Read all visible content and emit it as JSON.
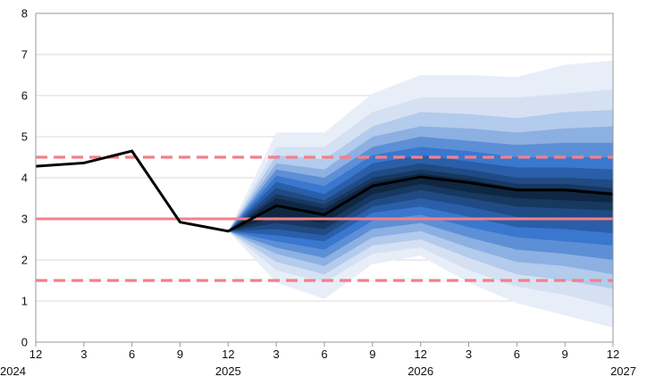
{
  "chart_data": {
    "type": "area",
    "title": "",
    "xlabel": "",
    "ylabel": "",
    "ylim": [
      0,
      8
    ],
    "y_ticks": [
      0,
      1,
      2,
      3,
      4,
      5,
      6,
      7,
      8
    ],
    "grid": true,
    "x_tick_labels": [
      {
        "month": "12",
        "year": "2024"
      },
      {
        "month": "3",
        "year": ""
      },
      {
        "month": "6",
        "year": ""
      },
      {
        "month": "9",
        "year": ""
      },
      {
        "month": "12",
        "year": "2025"
      },
      {
        "month": "3",
        "year": ""
      },
      {
        "month": "6",
        "year": ""
      },
      {
        "month": "9",
        "year": ""
      },
      {
        "month": "12",
        "year": "2026"
      },
      {
        "month": "3",
        "year": ""
      },
      {
        "month": "6",
        "year": ""
      },
      {
        "month": "9",
        "year": ""
      },
      {
        "month": "12",
        "year": "2027"
      }
    ],
    "x_dates": [
      "2024-12",
      "2025-03",
      "2025-06",
      "2025-09",
      "2025-12",
      "2026-03",
      "2026-06",
      "2026-09",
      "2026-12",
      "2027-03",
      "2027-06",
      "2027-09",
      "2027-12"
    ],
    "series": [
      {
        "role": "central",
        "color": "#000000",
        "values": [
          4.28,
          4.36,
          4.65,
          2.92,
          2.7,
          3.32,
          3.1,
          3.8,
          4.02,
          3.88,
          3.7,
          3.7,
          3.6
        ]
      }
    ],
    "fan_chart": {
      "start_date": "2025-12",
      "dates": [
        "2025-12",
        "2026-03",
        "2026-06",
        "2026-09",
        "2026-12",
        "2027-03",
        "2027-06",
        "2027-09",
        "2027-12"
      ],
      "colors": [
        "#e8eef8",
        "#d5e1f3",
        "#b3cbec",
        "#8db0e2",
        "#5d8fd6",
        "#3a77ce",
        "#2a5ea8",
        "#1f4a84",
        "#17385f",
        "#0f2743"
      ],
      "bands": [
        {
          "lower": [
            2.7,
            1.45,
            1.05,
            1.9,
            2.1,
            1.45,
            0.95,
            0.65,
            0.35
          ],
          "upper": [
            2.7,
            5.1,
            5.1,
            6.05,
            6.5,
            6.5,
            6.45,
            6.75,
            6.85
          ]
        },
        {
          "lower": [
            2.7,
            1.75,
            1.45,
            2.15,
            2.3,
            1.75,
            1.35,
            1.15,
            0.85
          ],
          "upper": [
            2.7,
            4.75,
            4.75,
            5.6,
            5.95,
            5.95,
            5.95,
            6.05,
            6.15
          ]
        },
        {
          "lower": [
            2.7,
            1.95,
            1.65,
            2.35,
            2.5,
            2.05,
            1.65,
            1.5,
            1.3
          ],
          "upper": [
            2.7,
            4.55,
            4.45,
            5.25,
            5.6,
            5.55,
            5.45,
            5.6,
            5.65
          ]
        },
        {
          "lower": [
            2.7,
            2.15,
            1.85,
            2.55,
            2.7,
            2.3,
            1.95,
            1.85,
            1.65
          ],
          "upper": [
            2.7,
            4.35,
            4.2,
            5.0,
            5.25,
            5.2,
            5.1,
            5.2,
            5.25
          ]
        },
        {
          "lower": [
            2.7,
            2.3,
            2.05,
            2.75,
            2.9,
            2.55,
            2.25,
            2.15,
            2.0
          ],
          "upper": [
            2.7,
            4.2,
            4.0,
            4.75,
            5.0,
            4.9,
            4.8,
            4.85,
            4.85
          ]
        },
        {
          "lower": [
            2.7,
            2.45,
            2.25,
            2.95,
            3.1,
            2.8,
            2.55,
            2.45,
            2.35
          ],
          "upper": [
            2.7,
            4.05,
            3.8,
            4.55,
            4.75,
            4.65,
            4.5,
            4.5,
            4.5
          ]
        },
        {
          "lower": [
            2.7,
            2.6,
            2.45,
            3.15,
            3.3,
            3.05,
            2.8,
            2.75,
            2.65
          ],
          "upper": [
            2.7,
            3.9,
            3.6,
            4.35,
            4.55,
            4.4,
            4.25,
            4.25,
            4.2
          ]
        },
        {
          "lower": [
            2.7,
            2.75,
            2.6,
            3.3,
            3.5,
            3.3,
            3.05,
            3.0,
            2.95
          ],
          "upper": [
            2.7,
            3.75,
            3.45,
            4.15,
            4.35,
            4.2,
            4.0,
            4.0,
            3.95
          ]
        },
        {
          "lower": [
            2.7,
            2.9,
            2.75,
            3.45,
            3.7,
            3.5,
            3.3,
            3.25,
            3.2
          ],
          "upper": [
            2.7,
            3.6,
            3.35,
            4.0,
            4.2,
            4.05,
            3.85,
            3.85,
            3.75
          ]
        },
        {
          "lower": [
            2.7,
            3.05,
            2.9,
            3.6,
            3.85,
            3.65,
            3.5,
            3.45,
            3.4
          ],
          "upper": [
            2.7,
            3.5,
            3.25,
            3.9,
            4.1,
            3.95,
            3.75,
            3.75,
            3.65
          ]
        }
      ]
    },
    "reference_lines": [
      {
        "value": 3.0,
        "style": "solid",
        "color": "#f2808a"
      },
      {
        "value": 4.5,
        "style": "dashed",
        "color": "#f2808a"
      },
      {
        "value": 1.5,
        "style": "dashed",
        "color": "#f2808a"
      }
    ]
  }
}
